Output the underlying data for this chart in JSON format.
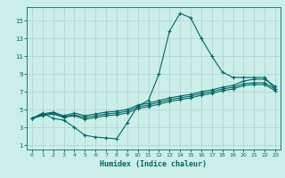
{
  "xlabel": "Humidex (Indice chaleur)",
  "bg_color": "#cceee8",
  "grid_color": "#aad4cc",
  "line_color": "#006666",
  "xlim": [
    -0.5,
    23.5
  ],
  "ylim": [
    0.5,
    16.5
  ],
  "xticks": [
    0,
    1,
    2,
    3,
    4,
    5,
    6,
    7,
    8,
    9,
    10,
    11,
    12,
    13,
    14,
    15,
    16,
    17,
    18,
    19,
    20,
    21,
    22,
    23
  ],
  "yticks": [
    1,
    3,
    5,
    7,
    9,
    11,
    13,
    15
  ],
  "line1_x": [
    0,
    1,
    2,
    3,
    4,
    5,
    6,
    7,
    8,
    9,
    10,
    11,
    12,
    13,
    14,
    15,
    16,
    17,
    18,
    19,
    20,
    21,
    22,
    23
  ],
  "line1_y": [
    4.0,
    4.6,
    4.0,
    3.8,
    3.0,
    2.1,
    1.9,
    1.8,
    1.7,
    3.5,
    5.4,
    6.0,
    9.0,
    13.8,
    15.8,
    15.3,
    13.0,
    11.0,
    9.2,
    8.6,
    8.6,
    8.6,
    8.6,
    7.3
  ],
  "line2_x": [
    0,
    1,
    2,
    3,
    4,
    5,
    6,
    7,
    8,
    9,
    10,
    11,
    12,
    13,
    14,
    15,
    16,
    17,
    18,
    19,
    20,
    21,
    22,
    23
  ],
  "line2_y": [
    4.0,
    4.5,
    4.7,
    4.3,
    4.6,
    4.3,
    4.5,
    4.7,
    4.8,
    5.0,
    5.5,
    5.7,
    6.0,
    6.3,
    6.5,
    6.7,
    7.0,
    7.2,
    7.5,
    7.7,
    8.2,
    8.4,
    8.4,
    7.6
  ],
  "line3_x": [
    0,
    1,
    2,
    3,
    4,
    5,
    6,
    7,
    8,
    9,
    10,
    11,
    12,
    13,
    14,
    15,
    16,
    17,
    18,
    19,
    20,
    21,
    22,
    23
  ],
  "line3_y": [
    4.0,
    4.4,
    4.6,
    4.2,
    4.4,
    4.1,
    4.3,
    4.5,
    4.6,
    4.8,
    5.3,
    5.5,
    5.8,
    6.1,
    6.3,
    6.5,
    6.8,
    7.0,
    7.3,
    7.5,
    7.9,
    8.0,
    8.0,
    7.3
  ],
  "line4_x": [
    0,
    1,
    2,
    3,
    4,
    5,
    6,
    7,
    8,
    9,
    10,
    11,
    12,
    13,
    14,
    15,
    16,
    17,
    18,
    19,
    20,
    21,
    22,
    23
  ],
  "line4_y": [
    4.0,
    4.3,
    4.5,
    4.1,
    4.3,
    3.9,
    4.1,
    4.3,
    4.4,
    4.6,
    5.1,
    5.3,
    5.6,
    5.9,
    6.1,
    6.3,
    6.6,
    6.8,
    7.1,
    7.3,
    7.7,
    7.8,
    7.8,
    7.1
  ]
}
